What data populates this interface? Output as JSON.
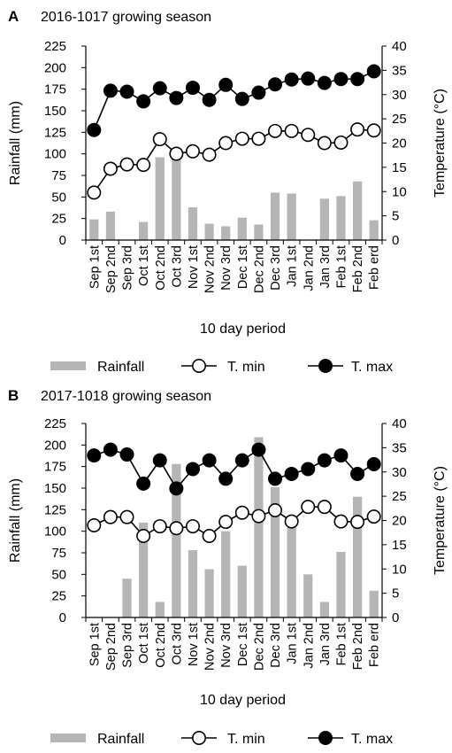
{
  "chart_data": [
    {
      "type": "bar+line",
      "panel": "A",
      "title": "2016-1017 growing season",
      "xlabel": "10 day period",
      "ylabel_left": "Rainfall (mm)",
      "ylabel_right": "Temperature (°C)",
      "ylim_left": [
        0,
        225
      ],
      "yticks_left": [
        "0",
        "25",
        "50",
        "75",
        "100",
        "125",
        "150",
        "175",
        "200",
        "225"
      ],
      "ylim_right": [
        0,
        40
      ],
      "yticks_right": [
        "0",
        "5",
        "10",
        "15",
        "20",
        "25",
        "30",
        "35",
        "40"
      ],
      "categories": [
        "Sep 1st",
        "Sep 2nd",
        "Sep 3rd",
        "Oct 1st",
        "Oct 2nd",
        "Oct 3rd",
        "Nov 1st",
        "Nov 2nd",
        "Nov 3rd",
        "Dec 1st",
        "Dec 2nd",
        "Dec 3rd",
        "Jan 1st",
        "Jan 2nd",
        "Jan 3rd",
        "Feb 1st",
        "Feb 2nd",
        "Feb erd"
      ],
      "series": [
        {
          "name": "Rainfall",
          "kind": "bar",
          "axis": "left",
          "color": "#b5b5b5",
          "values": [
            24,
            33,
            0,
            21,
            96,
            97,
            38,
            19,
            16,
            26,
            18,
            55,
            54,
            0,
            48,
            51,
            68,
            23
          ]
        },
        {
          "name": "T. min",
          "kind": "line",
          "axis": "right",
          "marker": "open-circle",
          "values": [
            9.8,
            14.7,
            15.6,
            15.5,
            20.8,
            17.8,
            18.3,
            17.6,
            20.0,
            20.9,
            20.9,
            22.5,
            22.5,
            21.7,
            20.0,
            20.1,
            22.8,
            22.6
          ]
        },
        {
          "name": "T. max",
          "kind": "line",
          "axis": "right",
          "marker": "filled-circle",
          "values": [
            22.7,
            30.8,
            30.6,
            28.6,
            31.3,
            29.3,
            31.4,
            28.9,
            32.0,
            29.1,
            30.4,
            32.1,
            33.1,
            33.3,
            32.4,
            33.2,
            33.2,
            34.8
          ]
        }
      ],
      "legend": [
        "Rainfall",
        "T. min",
        "T. max"
      ],
      "legend_position": "bottom"
    },
    {
      "type": "bar+line",
      "panel": "B",
      "title": "2017-1018 growing season",
      "xlabel": "10 day period",
      "ylabel_left": "Rainfall (mm)",
      "ylabel_right": "Temperature (°C)",
      "ylim_left": [
        0,
        225
      ],
      "yticks_left": [
        "0",
        "25",
        "50",
        "75",
        "100",
        "125",
        "150",
        "175",
        "200",
        "225"
      ],
      "ylim_right": [
        0,
        40
      ],
      "yticks_right": [
        "0",
        "5",
        "10",
        "15",
        "20",
        "25",
        "30",
        "35",
        "40"
      ],
      "categories": [
        "Sep 1st",
        "Sep 2nd",
        "Sep 3rd",
        "Oct 1st",
        "Oct 2nd",
        "Oct 3rd",
        "Nov 1st",
        "Nov 2nd",
        "Nov 3rd",
        "Dec 1st",
        "Dec 2nd",
        "Dec 3rd",
        "Jan 1st",
        "Jan 2nd",
        "Jan 3rd",
        "Feb 1st",
        "Feb 2nd",
        "Feb erd"
      ],
      "series": [
        {
          "name": "Rainfall",
          "kind": "bar",
          "axis": "left",
          "color": "#b5b5b5",
          "values": [
            0,
            0,
            45,
            110,
            18,
            178,
            78,
            56,
            100,
            60,
            209,
            151,
            113,
            50,
            18,
            76,
            140,
            31
          ]
        },
        {
          "name": "T. min",
          "kind": "line",
          "axis": "right",
          "marker": "open-circle",
          "values": [
            19.0,
            20.7,
            20.7,
            16.8,
            18.8,
            18.4,
            18.8,
            16.8,
            19.7,
            21.6,
            20.9,
            22.1,
            19.8,
            22.8,
            22.8,
            19.8,
            19.7,
            20.8
          ]
        },
        {
          "name": "T. max",
          "kind": "line",
          "axis": "right",
          "marker": "filled-circle",
          "values": [
            33.4,
            34.6,
            33.6,
            27.6,
            32.4,
            26.6,
            30.6,
            32.4,
            28.6,
            32.4,
            34.6,
            28.6,
            29.6,
            30.6,
            32.4,
            33.4,
            29.6,
            31.6
          ]
        }
      ],
      "legend": [
        "Rainfall",
        "T. min",
        "T. max"
      ],
      "legend_position": "bottom"
    }
  ]
}
